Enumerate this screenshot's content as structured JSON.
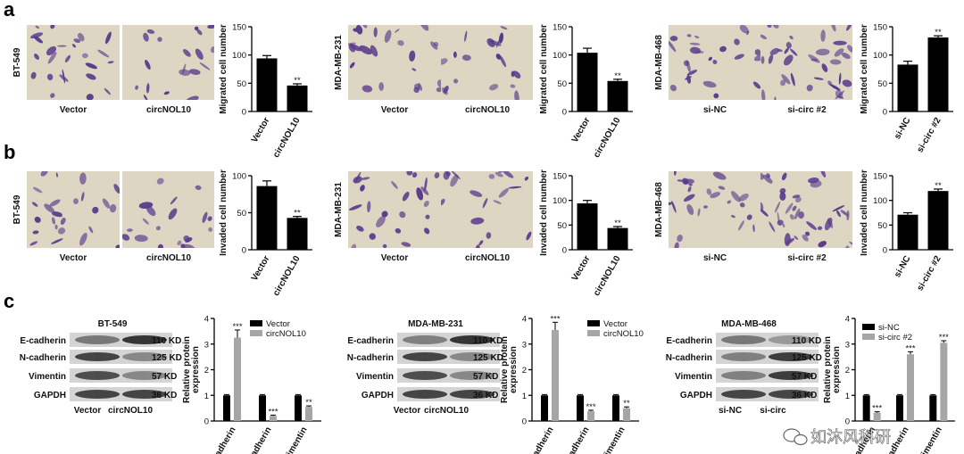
{
  "panel_labels": [
    "a",
    "b",
    "c"
  ],
  "colors": {
    "bar": "#000000",
    "black_series": "#000000",
    "grey_series": "#a6a6a6",
    "stain": "#5a3a8c",
    "membrane": "#ddd6c3",
    "band": "#2c2c2c"
  },
  "watermark": {
    "text": "如沐风科研",
    "icon": "wechat-icon"
  },
  "chart_data": [
    {
      "panel": "a",
      "type": "bar",
      "cell_line": "BT-549",
      "image_labels": [
        "Vector",
        "circNOL10"
      ],
      "categories": [
        "Vector",
        "circNOL10"
      ],
      "values": [
        94,
        46
      ],
      "errors": [
        5,
        3
      ],
      "significance": [
        "",
        "**"
      ],
      "ylabel": "Migrated cell number",
      "ylim": [
        0,
        150
      ],
      "yticks": [
        0,
        50,
        100,
        150
      ]
    },
    {
      "panel": "a",
      "type": "bar",
      "cell_line": "MDA-MB-231",
      "image_labels": [
        "Vector",
        "circNOL10"
      ],
      "categories": [
        "Vector",
        "circNOL10"
      ],
      "values": [
        104,
        54
      ],
      "errors": [
        8,
        3
      ],
      "significance": [
        "",
        "**"
      ],
      "ylabel": "Migrated cell number",
      "ylim": [
        0,
        150
      ],
      "yticks": [
        0,
        50,
        100,
        150
      ]
    },
    {
      "panel": "a",
      "type": "bar",
      "cell_line": "MDA-MB-468",
      "image_labels": [
        "si-NC",
        "si-circ #2"
      ],
      "categories": [
        "si-NC",
        "si-circ #2"
      ],
      "values": [
        83,
        131
      ],
      "errors": [
        6,
        3
      ],
      "significance": [
        "",
        "**"
      ],
      "ylabel": "Migrated cell number",
      "ylim": [
        0,
        150
      ],
      "yticks": [
        0,
        50,
        100,
        150
      ]
    },
    {
      "panel": "b",
      "type": "bar",
      "cell_line": "BT-549",
      "image_labels": [
        "Vector",
        "circNOL10"
      ],
      "categories": [
        "Vector",
        "circNOL10"
      ],
      "values": [
        86,
        43
      ],
      "errors": [
        7,
        2
      ],
      "significance": [
        "",
        "**"
      ],
      "ylabel": "Invaded cell number",
      "ylim": [
        0,
        100
      ],
      "yticks": [
        0,
        50,
        100
      ]
    },
    {
      "panel": "b",
      "type": "bar",
      "cell_line": "MDA-MB-231",
      "image_labels": [
        "Vector",
        "circNOL10"
      ],
      "categories": [
        "Vector",
        "circNOL10"
      ],
      "values": [
        94,
        44
      ],
      "errors": [
        6,
        3
      ],
      "significance": [
        "",
        "**"
      ],
      "ylabel": "Invaded cell number",
      "ylim": [
        0,
        150
      ],
      "yticks": [
        0,
        50,
        100,
        150
      ]
    },
    {
      "panel": "b",
      "type": "bar",
      "cell_line": "MDA-MB-468",
      "image_labels": [
        "si-NC",
        "si-circ #2"
      ],
      "categories": [
        "si-NC",
        "si-circ #2"
      ],
      "values": [
        71,
        119
      ],
      "errors": [
        4,
        4
      ],
      "significance": [
        "",
        "**"
      ],
      "ylabel": "Invaded cell number",
      "ylim": [
        0,
        150
      ],
      "yticks": [
        0,
        50,
        100,
        150
      ]
    },
    {
      "panel": "c",
      "type": "bar",
      "cell_line": "BT-549",
      "blot_rows": [
        "E-cadherin",
        "N-cadherin",
        "Vimentin",
        "GAPDH"
      ],
      "blot_sizes": [
        "110 KD",
        "125 KD",
        "57 KD",
        "36 KD"
      ],
      "lane_labels": [
        "Vector",
        "circNOL10"
      ],
      "band_intensity": [
        [
          0.55,
          0.95
        ],
        [
          0.85,
          0.45
        ],
        [
          0.8,
          0.45
        ],
        [
          0.85,
          0.85
        ]
      ],
      "categories": [
        "E-cadherin",
        "N-cadherin",
        "Vimentin"
      ],
      "series": [
        {
          "name": "Vector",
          "values": [
            1.0,
            1.0,
            1.0
          ],
          "errors": [
            0.03,
            0.03,
            0.03
          ],
          "significance": [
            "",
            "",
            ""
          ]
        },
        {
          "name": "circNOL10",
          "values": [
            3.25,
            0.2,
            0.55
          ],
          "errors": [
            0.3,
            0.03,
            0.04
          ],
          "significance": [
            "***",
            "***",
            "**"
          ]
        }
      ],
      "ylabel": "Relative protein expression",
      "ylim": [
        0,
        4
      ],
      "yticks": [
        0,
        1,
        2,
        3,
        4
      ]
    },
    {
      "panel": "c",
      "type": "bar",
      "cell_line": "MDA-MB-231",
      "blot_rows": [
        "E-cadherin",
        "N-cadherin",
        "Vimentin",
        "GAPDH"
      ],
      "blot_sizes": [
        "110 KD",
        "125 KD",
        "57 KD",
        "36 KD"
      ],
      "lane_labels": [
        "Vector",
        "circNOL10"
      ],
      "band_intensity": [
        [
          0.5,
          0.95
        ],
        [
          0.85,
          0.45
        ],
        [
          0.8,
          0.45
        ],
        [
          0.85,
          0.85
        ]
      ],
      "categories": [
        "E-cadherin",
        "N-cadherin",
        "Vimentin"
      ],
      "series": [
        {
          "name": "Vector",
          "values": [
            1.0,
            1.0,
            1.0
          ],
          "errors": [
            0.03,
            0.03,
            0.03
          ],
          "significance": [
            "",
            "",
            ""
          ]
        },
        {
          "name": "circNOL10",
          "values": [
            3.55,
            0.38,
            0.5
          ],
          "errors": [
            0.3,
            0.04,
            0.05
          ],
          "significance": [
            "***",
            "***",
            "**"
          ]
        }
      ],
      "ylabel": "Relative protein expression",
      "ylim": [
        0,
        4
      ],
      "yticks": [
        0,
        1,
        2,
        3,
        4
      ]
    },
    {
      "panel": "c",
      "type": "bar",
      "cell_line": "MDA-MB-468",
      "blot_rows": [
        "E-cadherin",
        "N-cadherin",
        "Vimentin",
        "GAPDH"
      ],
      "blot_sizes": [
        "110 KD",
        "125 KD",
        "57 KD",
        "36 KD"
      ],
      "lane_labels": [
        "si-NC",
        "si-circ"
      ],
      "band_intensity": [
        [
          0.55,
          0.35
        ],
        [
          0.5,
          0.9
        ],
        [
          0.5,
          0.9
        ],
        [
          0.85,
          0.85
        ]
      ],
      "categories": [
        "E-cadherin",
        "N-cadherin",
        "Vimentin"
      ],
      "series": [
        {
          "name": "si-NC",
          "values": [
            1.0,
            1.0,
            1.0
          ],
          "errors": [
            0.03,
            0.03,
            0.03
          ],
          "significance": [
            "",
            "",
            ""
          ]
        },
        {
          "name": "si-circ #2",
          "values": [
            0.32,
            2.6,
            3.05
          ],
          "errors": [
            0.04,
            0.1,
            0.08
          ],
          "significance": [
            "***",
            "***",
            "***"
          ]
        }
      ],
      "ylabel": "Relative protein expression",
      "ylim": [
        0,
        4
      ],
      "yticks": [
        0,
        1,
        2,
        3,
        4
      ]
    }
  ]
}
